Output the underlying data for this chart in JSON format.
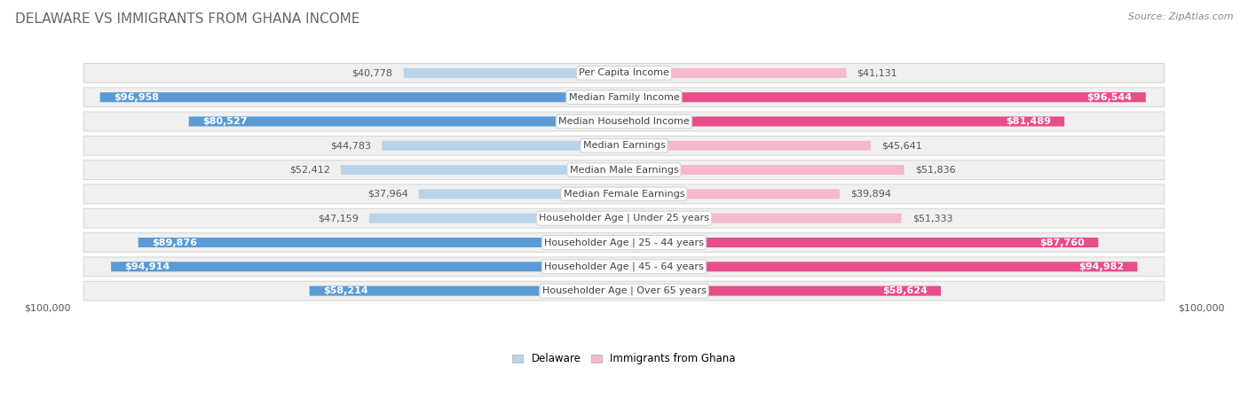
{
  "title": "DELAWARE VS IMMIGRANTS FROM GHANA INCOME",
  "source": "Source: ZipAtlas.com",
  "categories": [
    "Per Capita Income",
    "Median Family Income",
    "Median Household Income",
    "Median Earnings",
    "Median Male Earnings",
    "Median Female Earnings",
    "Householder Age | Under 25 years",
    "Householder Age | 25 - 44 years",
    "Householder Age | 45 - 64 years",
    "Householder Age | Over 65 years"
  ],
  "delaware_values": [
    40778,
    96958,
    80527,
    44783,
    52412,
    37964,
    47159,
    89876,
    94914,
    58214
  ],
  "ghana_values": [
    41131,
    96544,
    81489,
    45641,
    51836,
    39894,
    51333,
    87760,
    94982,
    58624
  ],
  "delaware_labels": [
    "$40,778",
    "$96,958",
    "$80,527",
    "$44,783",
    "$52,412",
    "$37,964",
    "$47,159",
    "$89,876",
    "$94,914",
    "$58,214"
  ],
  "ghana_labels": [
    "$41,131",
    "$96,544",
    "$81,489",
    "$45,641",
    "$51,836",
    "$39,894",
    "$51,333",
    "$87,760",
    "$94,982",
    "$58,624"
  ],
  "del_color_light": "#b8d4ec",
  "del_color_dark": "#5b9bd5",
  "gha_color_light": "#f5b8cc",
  "gha_color_dark": "#e84c8b",
  "max_value": 100000,
  "row_bg": "#f0f0f0",
  "row_border": "#d8d8d8",
  "legend_delaware": "Delaware",
  "legend_ghana": "Immigrants from Ghana",
  "xlabel_left": "$100,000",
  "xlabel_right": "$100,000",
  "title_fontsize": 11,
  "label_fontsize": 8,
  "category_fontsize": 8,
  "source_fontsize": 8,
  "threshold": 55000
}
